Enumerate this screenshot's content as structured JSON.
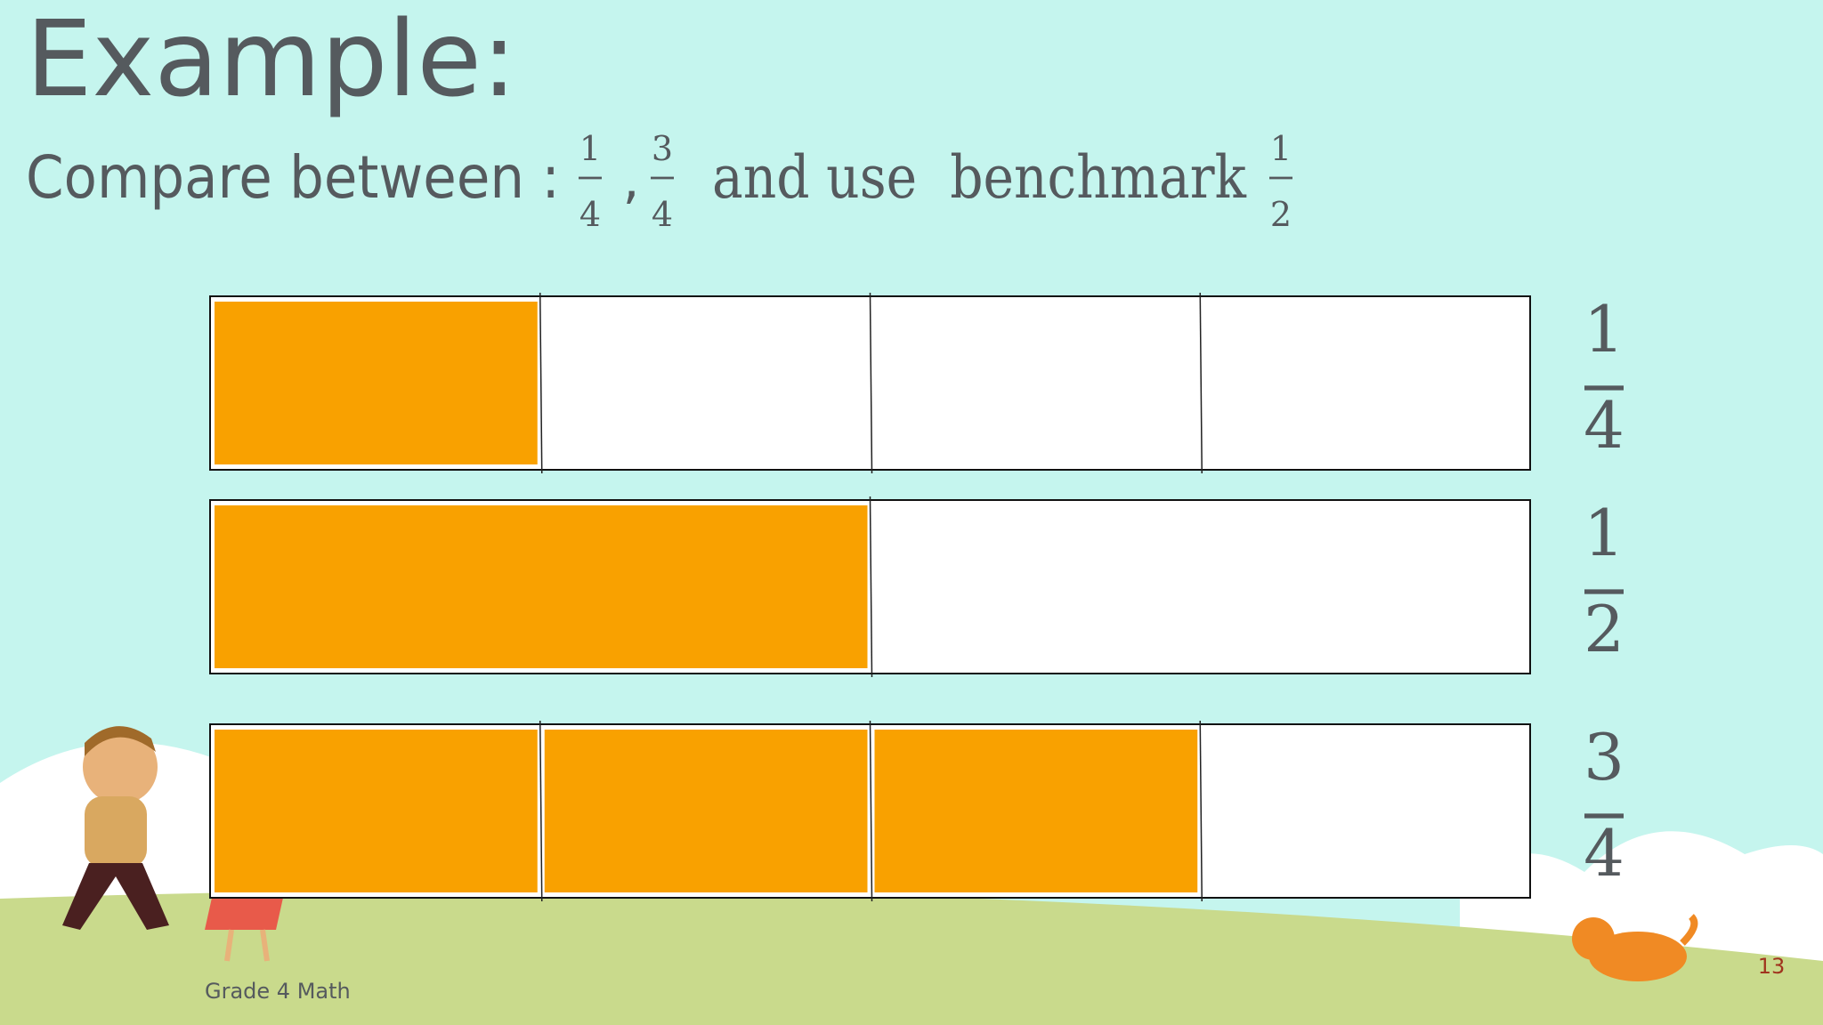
{
  "header": {
    "title": "Example:",
    "subtitle": {
      "text": "Compare between :",
      "fractions": [
        {
          "numerator": 1,
          "denominator": 4
        },
        {
          "numerator": 3,
          "denominator": 4
        }
      ],
      "separator": ",",
      "text2": "and use  benchmark",
      "benchmark": {
        "numerator": 1,
        "denominator": 2
      }
    }
  },
  "bars": [
    {
      "numerator": 1,
      "denominator": 4
    },
    {
      "numerator": 1,
      "denominator": 2
    },
    {
      "numerator": 3,
      "denominator": 4
    }
  ],
  "footer": {
    "label": "Grade 4 Math",
    "page": "13"
  }
}
